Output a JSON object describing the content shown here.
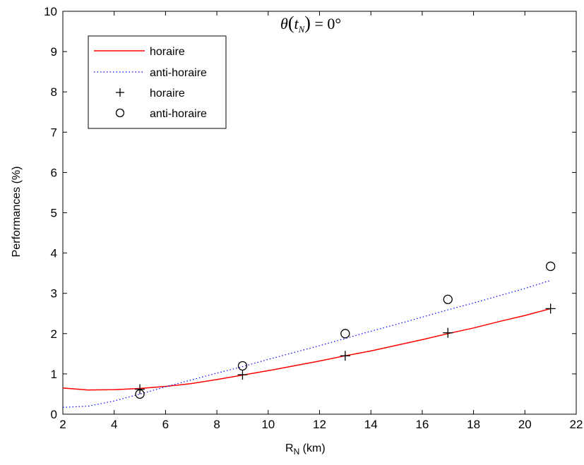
{
  "chart_data": {
    "type": "line",
    "title": {
      "theta": "θ",
      "open_paren": "(",
      "t": "t",
      "sub": "N",
      "close_paren": ")",
      "rest": " = 0°"
    },
    "xlabel": {
      "main": "R",
      "sub": "N",
      "rest": " (km)"
    },
    "ylabel": "Performances (%)",
    "xlim": [
      2,
      22
    ],
    "ylim": [
      0,
      10
    ],
    "xticks": [
      2,
      4,
      6,
      8,
      10,
      12,
      14,
      16,
      18,
      20,
      22
    ],
    "yticks": [
      0,
      1,
      2,
      3,
      4,
      5,
      6,
      7,
      8,
      9,
      10
    ],
    "grid": false,
    "legend_position": "top-left",
    "series": [
      {
        "name": "horaire",
        "kind": "line",
        "style": "solid",
        "color": "#ff0000",
        "x": [
          2,
          3,
          4,
          5,
          6,
          7,
          8,
          9,
          10,
          11,
          12,
          13,
          14,
          15,
          16,
          17,
          18,
          19,
          20,
          21
        ],
        "y": [
          0.65,
          0.6,
          0.61,
          0.64,
          0.69,
          0.76,
          0.86,
          0.97,
          1.08,
          1.2,
          1.32,
          1.45,
          1.57,
          1.71,
          1.85,
          2.0,
          2.14,
          2.3,
          2.45,
          2.62
        ]
      },
      {
        "name": "anti-horaire",
        "kind": "line",
        "style": "dotted",
        "color": "#0000ff",
        "x": [
          2,
          3,
          4,
          5,
          6,
          7,
          8,
          9,
          10,
          11,
          12,
          13,
          14,
          15,
          16,
          17,
          18,
          19,
          20,
          21
        ],
        "y": [
          0.17,
          0.2,
          0.33,
          0.5,
          0.68,
          0.85,
          1.02,
          1.18,
          1.36,
          1.53,
          1.7,
          1.88,
          2.06,
          2.23,
          2.41,
          2.59,
          2.76,
          2.94,
          3.12,
          3.32
        ]
      },
      {
        "name": "horaire",
        "kind": "marker",
        "marker": "plus",
        "color": "#000000",
        "x": [
          5,
          9,
          13,
          17,
          21
        ],
        "y": [
          0.62,
          0.98,
          1.45,
          2.02,
          2.62
        ]
      },
      {
        "name": "anti-horaire",
        "kind": "marker",
        "marker": "circle",
        "color": "#000000",
        "x": [
          5,
          9,
          13,
          17,
          21
        ],
        "y": [
          0.5,
          1.2,
          2.0,
          2.85,
          3.67
        ]
      }
    ]
  }
}
